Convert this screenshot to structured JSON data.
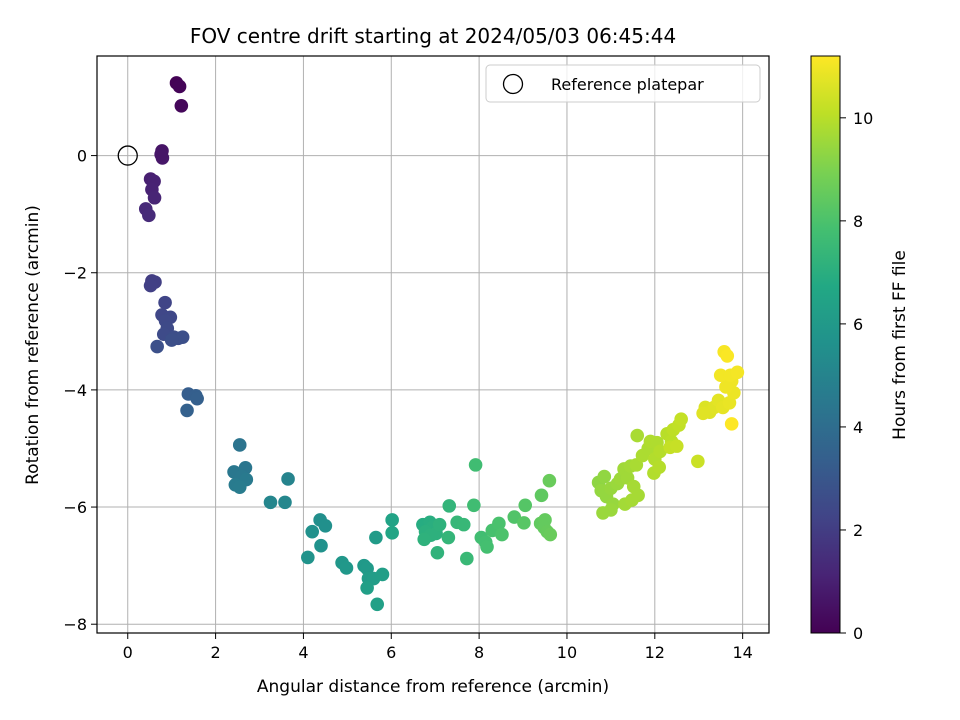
{
  "chart_data": {
    "type": "scatter",
    "title": "FOV centre drift starting at 2024/05/03 06:45:44",
    "xlabel": "Angular distance from reference (arcmin)",
    "ylabel": "Rotation from reference (arcmin)",
    "xlim": [
      -0.7,
      14.6
    ],
    "ylim": [
      -8.15,
      1.7
    ],
    "xticks": [
      0,
      2,
      4,
      6,
      8,
      10,
      12,
      14
    ],
    "yticks": [
      0,
      -2,
      -4,
      -6,
      -8
    ],
    "grid": true,
    "legend": {
      "placement": "upper right",
      "entries": [
        "Reference platepar"
      ]
    },
    "reference_point": {
      "x": 0,
      "y": 0,
      "label": "Reference platepar"
    },
    "colorbar": {
      "label": "Hours from first FF file",
      "range": [
        0,
        11.2
      ],
      "ticks": [
        0,
        2,
        4,
        6,
        8,
        10
      ],
      "colormap": "viridis"
    },
    "points": [
      {
        "x": 1.11,
        "y": 1.24,
        "c": 0.05
      },
      {
        "x": 1.18,
        "y": 1.18,
        "c": 0.1
      },
      {
        "x": 1.22,
        "y": 0.85,
        "c": 0.2
      },
      {
        "x": 0.78,
        "y": 0.08,
        "c": 0.6
      },
      {
        "x": 0.79,
        "y": -0.04,
        "c": 0.7
      },
      {
        "x": 0.76,
        "y": 0.02,
        "c": 0.65
      },
      {
        "x": 0.52,
        "y": -0.4,
        "c": 1.0
      },
      {
        "x": 0.6,
        "y": -0.44,
        "c": 1.05
      },
      {
        "x": 0.55,
        "y": -0.58,
        "c": 1.1
      },
      {
        "x": 0.61,
        "y": -0.72,
        "c": 1.15
      },
      {
        "x": 0.41,
        "y": -0.91,
        "c": 1.3
      },
      {
        "x": 0.48,
        "y": -1.02,
        "c": 1.35
      },
      {
        "x": 0.55,
        "y": -2.14,
        "c": 2.0
      },
      {
        "x": 0.62,
        "y": -2.16,
        "c": 2.05
      },
      {
        "x": 0.52,
        "y": -2.22,
        "c": 2.1
      },
      {
        "x": 0.85,
        "y": -2.51,
        "c": 2.3
      },
      {
        "x": 0.78,
        "y": -2.72,
        "c": 2.35
      },
      {
        "x": 0.97,
        "y": -2.76,
        "c": 2.4
      },
      {
        "x": 0.86,
        "y": -2.82,
        "c": 2.45
      },
      {
        "x": 0.9,
        "y": -2.95,
        "c": 2.5
      },
      {
        "x": 0.82,
        "y": -3.05,
        "c": 2.55
      },
      {
        "x": 1.05,
        "y": -3.1,
        "c": 2.6
      },
      {
        "x": 1.15,
        "y": -3.12,
        "c": 2.65
      },
      {
        "x": 1.25,
        "y": -3.1,
        "c": 2.7
      },
      {
        "x": 1.0,
        "y": -3.15,
        "c": 2.7
      },
      {
        "x": 0.67,
        "y": -3.26,
        "c": 2.75
      },
      {
        "x": 1.38,
        "y": -4.07,
        "c": 3.3
      },
      {
        "x": 1.55,
        "y": -4.1,
        "c": 3.35
      },
      {
        "x": 1.58,
        "y": -4.15,
        "c": 3.4
      },
      {
        "x": 1.35,
        "y": -4.35,
        "c": 3.45
      },
      {
        "x": 2.55,
        "y": -4.94,
        "c": 4.3
      },
      {
        "x": 2.68,
        "y": -5.33,
        "c": 4.4
      },
      {
        "x": 2.42,
        "y": -5.4,
        "c": 4.45
      },
      {
        "x": 2.6,
        "y": -5.48,
        "c": 4.5
      },
      {
        "x": 2.7,
        "y": -5.53,
        "c": 4.55
      },
      {
        "x": 2.45,
        "y": -5.62,
        "c": 4.6
      },
      {
        "x": 2.55,
        "y": -5.66,
        "c": 4.65
      },
      {
        "x": 3.65,
        "y": -5.52,
        "c": 5.0
      },
      {
        "x": 3.25,
        "y": -5.92,
        "c": 5.1
      },
      {
        "x": 3.58,
        "y": -5.92,
        "c": 5.15
      },
      {
        "x": 4.38,
        "y": -6.22,
        "c": 5.5
      },
      {
        "x": 4.5,
        "y": -6.32,
        "c": 5.55
      },
      {
        "x": 4.2,
        "y": -6.42,
        "c": 5.6
      },
      {
        "x": 4.4,
        "y": -6.66,
        "c": 5.65
      },
      {
        "x": 4.1,
        "y": -6.86,
        "c": 5.7
      },
      {
        "x": 4.88,
        "y": -6.95,
        "c": 5.9
      },
      {
        "x": 4.98,
        "y": -7.04,
        "c": 5.95
      },
      {
        "x": 5.38,
        "y": -7.0,
        "c": 6.0
      },
      {
        "x": 5.45,
        "y": -7.05,
        "c": 6.05
      },
      {
        "x": 5.65,
        "y": -6.52,
        "c": 6.1
      },
      {
        "x": 5.48,
        "y": -7.22,
        "c": 6.15
      },
      {
        "x": 5.6,
        "y": -7.22,
        "c": 6.2
      },
      {
        "x": 5.8,
        "y": -7.15,
        "c": 6.25
      },
      {
        "x": 5.45,
        "y": -7.38,
        "c": 6.3
      },
      {
        "x": 5.68,
        "y": -7.66,
        "c": 6.35
      },
      {
        "x": 6.02,
        "y": -6.22,
        "c": 6.5
      },
      {
        "x": 6.02,
        "y": -6.44,
        "c": 6.55
      },
      {
        "x": 6.72,
        "y": -6.3,
        "c": 6.9
      },
      {
        "x": 6.88,
        "y": -6.26,
        "c": 6.95
      },
      {
        "x": 6.95,
        "y": -6.34,
        "c": 7.0
      },
      {
        "x": 6.78,
        "y": -6.42,
        "c": 7.05
      },
      {
        "x": 6.9,
        "y": -6.48,
        "c": 7.1
      },
      {
        "x": 7.02,
        "y": -6.45,
        "c": 7.1
      },
      {
        "x": 6.75,
        "y": -6.55,
        "c": 7.15
      },
      {
        "x": 7.1,
        "y": -6.3,
        "c": 7.15
      },
      {
        "x": 7.05,
        "y": -6.78,
        "c": 7.2
      },
      {
        "x": 7.32,
        "y": -5.98,
        "c": 7.3
      },
      {
        "x": 7.3,
        "y": -6.52,
        "c": 7.35
      },
      {
        "x": 7.5,
        "y": -6.26,
        "c": 7.4
      },
      {
        "x": 7.65,
        "y": -6.3,
        "c": 7.45
      },
      {
        "x": 7.72,
        "y": -6.88,
        "c": 7.5
      },
      {
        "x": 7.92,
        "y": -5.28,
        "c": 7.7
      },
      {
        "x": 7.88,
        "y": -5.97,
        "c": 7.7
      },
      {
        "x": 8.05,
        "y": -6.52,
        "c": 7.75
      },
      {
        "x": 8.15,
        "y": -6.6,
        "c": 7.8
      },
      {
        "x": 8.18,
        "y": -6.68,
        "c": 7.85
      },
      {
        "x": 8.3,
        "y": -6.4,
        "c": 7.9
      },
      {
        "x": 8.45,
        "y": -6.28,
        "c": 7.95
      },
      {
        "x": 8.52,
        "y": -6.47,
        "c": 8.0
      },
      {
        "x": 8.8,
        "y": -6.17,
        "c": 8.1
      },
      {
        "x": 9.05,
        "y": -5.97,
        "c": 8.2
      },
      {
        "x": 9.02,
        "y": -6.27,
        "c": 8.25
      },
      {
        "x": 9.42,
        "y": -5.8,
        "c": 8.4
      },
      {
        "x": 9.4,
        "y": -6.28,
        "c": 8.45
      },
      {
        "x": 9.5,
        "y": -6.22,
        "c": 8.5
      },
      {
        "x": 9.48,
        "y": -6.35,
        "c": 8.5
      },
      {
        "x": 9.55,
        "y": -6.42,
        "c": 8.55
      },
      {
        "x": 9.62,
        "y": -6.47,
        "c": 8.6
      },
      {
        "x": 9.6,
        "y": -5.55,
        "c": 8.6
      },
      {
        "x": 10.72,
        "y": -5.58,
        "c": 9.3
      },
      {
        "x": 10.85,
        "y": -5.48,
        "c": 9.35
      },
      {
        "x": 10.78,
        "y": -5.72,
        "c": 9.4
      },
      {
        "x": 10.9,
        "y": -5.82,
        "c": 9.4
      },
      {
        "x": 11.0,
        "y": -5.68,
        "c": 9.45
      },
      {
        "x": 11.05,
        "y": -5.95,
        "c": 9.45
      },
      {
        "x": 11.15,
        "y": -5.6,
        "c": 9.5
      },
      {
        "x": 10.82,
        "y": -6.1,
        "c": 9.5
      },
      {
        "x": 11.0,
        "y": -6.05,
        "c": 9.5
      },
      {
        "x": 11.22,
        "y": -5.52,
        "c": 9.55
      },
      {
        "x": 11.3,
        "y": -5.35,
        "c": 9.6
      },
      {
        "x": 11.38,
        "y": -5.5,
        "c": 9.6
      },
      {
        "x": 11.45,
        "y": -5.3,
        "c": 9.65
      },
      {
        "x": 11.32,
        "y": -5.95,
        "c": 9.65
      },
      {
        "x": 11.48,
        "y": -5.88,
        "c": 9.7
      },
      {
        "x": 11.62,
        "y": -5.8,
        "c": 9.7
      },
      {
        "x": 11.52,
        "y": -5.65,
        "c": 9.7
      },
      {
        "x": 11.58,
        "y": -5.28,
        "c": 9.75
      },
      {
        "x": 11.6,
        "y": -4.78,
        "c": 9.75
      },
      {
        "x": 11.72,
        "y": -5.12,
        "c": 9.8
      },
      {
        "x": 11.85,
        "y": -5.0,
        "c": 9.8
      },
      {
        "x": 11.9,
        "y": -4.88,
        "c": 9.85
      },
      {
        "x": 12.05,
        "y": -4.9,
        "c": 9.85
      },
      {
        "x": 12.0,
        "y": -5.18,
        "c": 9.9
      },
      {
        "x": 11.98,
        "y": -5.42,
        "c": 9.9
      },
      {
        "x": 12.1,
        "y": -5.32,
        "c": 9.95
      },
      {
        "x": 12.12,
        "y": -5.05,
        "c": 9.95
      },
      {
        "x": 12.28,
        "y": -4.75,
        "c": 10.0
      },
      {
        "x": 12.38,
        "y": -4.88,
        "c": 10.05
      },
      {
        "x": 12.42,
        "y": -4.68,
        "c": 10.1
      },
      {
        "x": 12.55,
        "y": -4.6,
        "c": 10.15
      },
      {
        "x": 12.6,
        "y": -4.5,
        "c": 10.2
      },
      {
        "x": 12.35,
        "y": -4.98,
        "c": 10.2
      },
      {
        "x": 12.5,
        "y": -4.96,
        "c": 10.25
      },
      {
        "x": 12.98,
        "y": -5.22,
        "c": 10.3
      },
      {
        "x": 13.15,
        "y": -4.3,
        "c": 10.6
      },
      {
        "x": 13.25,
        "y": -4.38,
        "c": 10.65
      },
      {
        "x": 13.35,
        "y": -4.3,
        "c": 10.7
      },
      {
        "x": 13.1,
        "y": -4.4,
        "c": 10.7
      },
      {
        "x": 13.45,
        "y": -4.18,
        "c": 10.75
      },
      {
        "x": 13.55,
        "y": -4.3,
        "c": 10.8
      },
      {
        "x": 13.7,
        "y": -4.22,
        "c": 10.85
      },
      {
        "x": 13.8,
        "y": -4.05,
        "c": 10.9
      },
      {
        "x": 13.75,
        "y": -3.85,
        "c": 10.95
      },
      {
        "x": 13.62,
        "y": -3.95,
        "c": 10.95
      },
      {
        "x": 13.5,
        "y": -3.75,
        "c": 11.0
      },
      {
        "x": 13.72,
        "y": -3.75,
        "c": 11.0
      },
      {
        "x": 13.88,
        "y": -3.7,
        "c": 11.05
      },
      {
        "x": 13.58,
        "y": -3.35,
        "c": 11.1
      },
      {
        "x": 13.65,
        "y": -3.42,
        "c": 11.15
      },
      {
        "x": 13.75,
        "y": -4.58,
        "c": 11.2
      }
    ]
  }
}
